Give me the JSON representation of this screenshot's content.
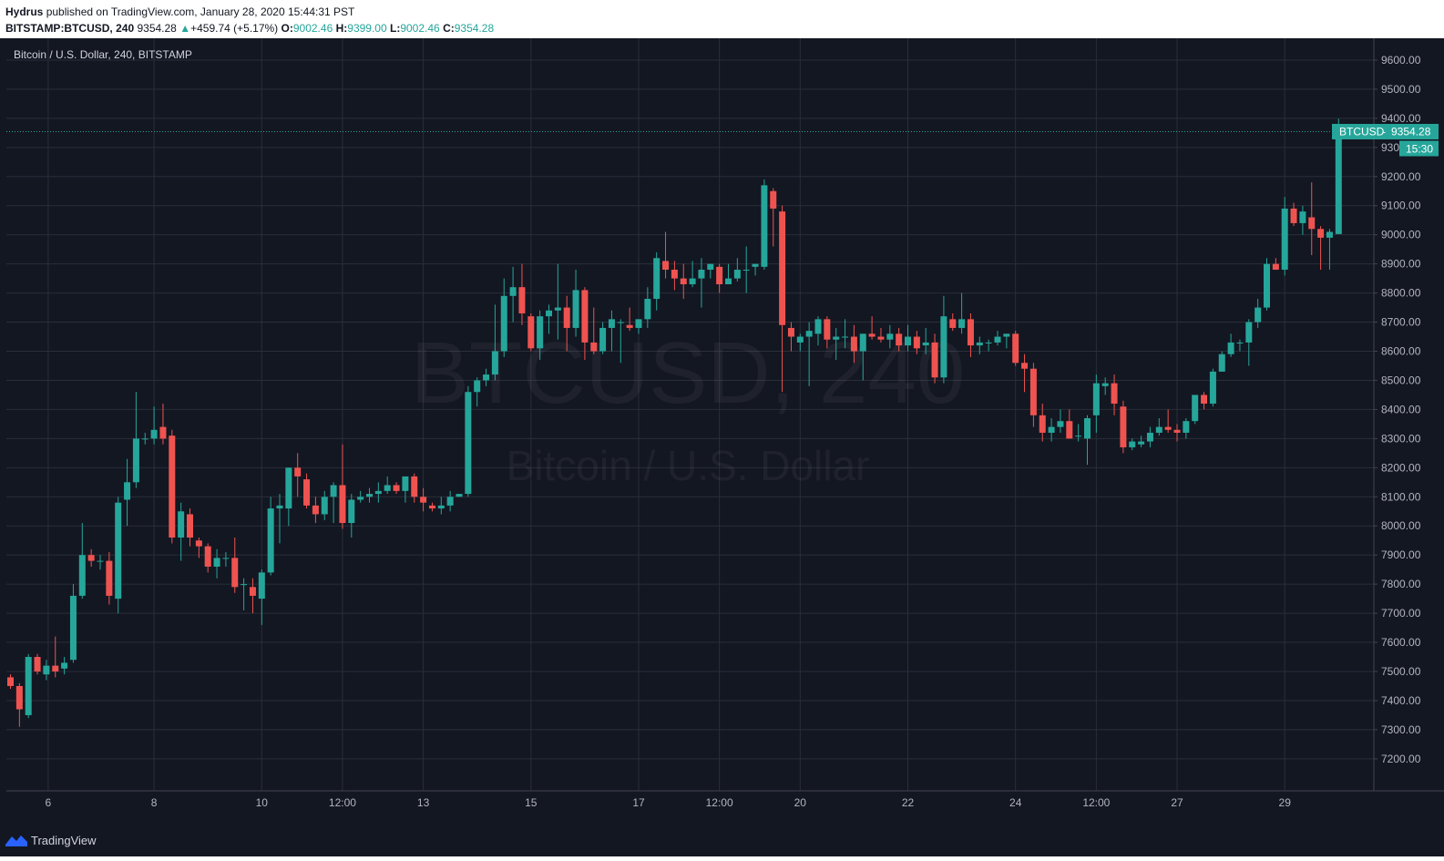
{
  "header": {
    "author": "Hydrus",
    "published_text": "published on TradingView.com, January 28, 2020 15:44:31 PST",
    "symbol": "BITSTAMP:BTCUSD, 240",
    "last": "9354.28",
    "change": "+459.74 (+5.17%)",
    "o_label": "O:",
    "o_value": "9002.46",
    "h_label": "H:",
    "h_value": "9399.00",
    "l_label": "L:",
    "l_value": "9002.46",
    "c_label": "C:",
    "c_value": "9354.28"
  },
  "chart_data": {
    "type": "candlestick",
    "title": "Bitcoin / U.S. Dollar, 240, BITSTAMP",
    "watermark_symbol": "BTCUSD, 240",
    "watermark_name": "Bitcoin / U.S. Dollar",
    "y_range": [
      7090,
      9675
    ],
    "y_ticks": [
      "7200.00",
      "7300.00",
      "7400.00",
      "7500.00",
      "7600.00",
      "7700.00",
      "7800.00",
      "7900.00",
      "8000.00",
      "8100.00",
      "8200.00",
      "8300.00",
      "8400.00",
      "8500.00",
      "8600.00",
      "8700.00",
      "8800.00",
      "8900.00",
      "9000.00",
      "9100.00",
      "9200.00",
      "9300.00",
      "9400.00",
      "9500.00",
      "9600.00"
    ],
    "y_tick_values": [
      7200,
      7300,
      7400,
      7500,
      7600,
      7700,
      7800,
      7900,
      8000,
      8100,
      8200,
      8300,
      8400,
      8500,
      8600,
      8700,
      8800,
      8900,
      9000,
      9100,
      9200,
      9300,
      9400,
      9500,
      9600
    ],
    "x_ticks": [
      "6",
      "8",
      "10",
      "12:00",
      "13",
      "15",
      "17",
      "12:00",
      "20",
      "22",
      "24",
      "12:00",
      "27",
      "29"
    ],
    "x_tick_index": [
      4.2,
      16,
      28,
      37,
      46,
      58,
      70,
      79,
      88,
      100,
      112,
      121,
      130,
      142
    ],
    "price_label": {
      "symbol": "BTCUSD",
      "value": "9354.28",
      "countdown": "15:30"
    },
    "colors": {
      "up": "#26a69a",
      "down": "#ef5350",
      "background": "#131722",
      "grid": "#2a2e39",
      "text": "#b2b5be"
    },
    "candles": [
      [
        7480,
        7490,
        7440,
        7450
      ],
      [
        7450,
        7460,
        7310,
        7370
      ],
      [
        7350,
        7560,
        7340,
        7550
      ],
      [
        7550,
        7560,
        7490,
        7500
      ],
      [
        7490,
        7540,
        7470,
        7520
      ],
      [
        7520,
        7620,
        7480,
        7500
      ],
      [
        7510,
        7550,
        7490,
        7530
      ],
      [
        7540,
        7800,
        7530,
        7760
      ],
      [
        7760,
        8010,
        7750,
        7900
      ],
      [
        7900,
        7920,
        7860,
        7880
      ],
      [
        7880,
        7900,
        7850,
        7880
      ],
      [
        7880,
        7910,
        7730,
        7760
      ],
      [
        7750,
        8100,
        7700,
        8080
      ],
      [
        8090,
        8230,
        8000,
        8150
      ],
      [
        8150,
        8460,
        8130,
        8300
      ],
      [
        8300,
        8320,
        8280,
        8300
      ],
      [
        8300,
        8410,
        8280,
        8330
      ],
      [
        8340,
        8420,
        8280,
        8300
      ],
      [
        8310,
        8330,
        7940,
        7960
      ],
      [
        7960,
        8080,
        7880,
        8050
      ],
      [
        8040,
        8060,
        7930,
        7960
      ],
      [
        7950,
        7960,
        7890,
        7930
      ],
      [
        7930,
        7940,
        7840,
        7860
      ],
      [
        7860,
        7920,
        7820,
        7890
      ],
      [
        7890,
        7910,
        7860,
        7890
      ],
      [
        7890,
        7960,
        7770,
        7790
      ],
      [
        7800,
        7820,
        7710,
        7800
      ],
      [
        7790,
        7820,
        7700,
        7760
      ],
      [
        7750,
        7850,
        7660,
        7840
      ],
      [
        7840,
        8100,
        7830,
        8060
      ],
      [
        8060,
        8110,
        7940,
        8070
      ],
      [
        8060,
        8200,
        8000,
        8200
      ],
      [
        8200,
        8250,
        8100,
        8170
      ],
      [
        8160,
        8180,
        8060,
        8070
      ],
      [
        8070,
        8100,
        8010,
        8040
      ],
      [
        8040,
        8120,
        8020,
        8100
      ],
      [
        8100,
        8150,
        8010,
        8140
      ],
      [
        8140,
        8280,
        7990,
        8010
      ],
      [
        8010,
        8110,
        7960,
        8090
      ],
      [
        8090,
        8120,
        8080,
        8100
      ],
      [
        8100,
        8130,
        8080,
        8110
      ],
      [
        8110,
        8150,
        8080,
        8120
      ],
      [
        8120,
        8170,
        8110,
        8140
      ],
      [
        8140,
        8150,
        8110,
        8120
      ],
      [
        8120,
        8160,
        8080,
        8170
      ],
      [
        8170,
        8180,
        8080,
        8100
      ],
      [
        8100,
        8130,
        8050,
        8080
      ],
      [
        8070,
        8080,
        8050,
        8060
      ],
      [
        8060,
        8100,
        8040,
        8070
      ],
      [
        8070,
        8120,
        8050,
        8100
      ],
      [
        8100,
        8110,
        8100,
        8110
      ],
      [
        8110,
        8480,
        8100,
        8460
      ],
      [
        8460,
        8510,
        8410,
        8500
      ],
      [
        8500,
        8540,
        8480,
        8520
      ],
      [
        8520,
        8760,
        8500,
        8600
      ],
      [
        8600,
        8850,
        8580,
        8790
      ],
      [
        8790,
        8890,
        8700,
        8820
      ],
      [
        8820,
        8900,
        8690,
        8730
      ],
      [
        8720,
        8730,
        8600,
        8610
      ],
      [
        8610,
        8740,
        8570,
        8720
      ],
      [
        8720,
        8760,
        8660,
        8740
      ],
      [
        8740,
        8900,
        8640,
        8750
      ],
      [
        8750,
        8790,
        8600,
        8680
      ],
      [
        8680,
        8880,
        8650,
        8810
      ],
      [
        8810,
        8820,
        8570,
        8630
      ],
      [
        8630,
        8750,
        8590,
        8600
      ],
      [
        8600,
        8700,
        8590,
        8680
      ],
      [
        8680,
        8740,
        8600,
        8710
      ],
      [
        8700,
        8710,
        8560,
        8700
      ],
      [
        8690,
        8750,
        8670,
        8680
      ],
      [
        8680,
        8710,
        8660,
        8710
      ],
      [
        8710,
        8820,
        8680,
        8780
      ],
      [
        8780,
        8940,
        8740,
        8920
      ],
      [
        8910,
        9010,
        8850,
        8880
      ],
      [
        8880,
        8910,
        8810,
        8850
      ],
      [
        8850,
        8900,
        8780,
        8830
      ],
      [
        8830,
        8910,
        8820,
        8850
      ],
      [
        8850,
        8920,
        8750,
        8880
      ],
      [
        8880,
        8900,
        8850,
        8900
      ],
      [
        8890,
        8900,
        8800,
        8830
      ],
      [
        8830,
        8900,
        8830,
        8850
      ],
      [
        8850,
        8920,
        8840,
        8880
      ],
      [
        8880,
        8960,
        8800,
        8880
      ],
      [
        8890,
        8900,
        8860,
        8900
      ],
      [
        8890,
        9190,
        8880,
        9170
      ],
      [
        9150,
        9160,
        8960,
        9090
      ],
      [
        9080,
        9100,
        8460,
        8690
      ],
      [
        8680,
        8700,
        8600,
        8650
      ],
      [
        8630,
        8660,
        8600,
        8650
      ],
      [
        8650,
        8700,
        8480,
        8670
      ],
      [
        8660,
        8720,
        8620,
        8710
      ],
      [
        8710,
        8720,
        8610,
        8640
      ],
      [
        8640,
        8680,
        8570,
        8650
      ],
      [
        8650,
        8710,
        8610,
        8650
      ],
      [
        8650,
        8690,
        8560,
        8600
      ],
      [
        8600,
        8660,
        8500,
        8660
      ],
      [
        8660,
        8720,
        8640,
        8650
      ],
      [
        8650,
        8680,
        8630,
        8640
      ],
      [
        8640,
        8690,
        8610,
        8660
      ],
      [
        8660,
        8680,
        8600,
        8620
      ],
      [
        8620,
        8690,
        8600,
        8650
      ],
      [
        8650,
        8670,
        8590,
        8610
      ],
      [
        8620,
        8680,
        8590,
        8630
      ],
      [
        8630,
        8660,
        8490,
        8510
      ],
      [
        8510,
        8790,
        8490,
        8720
      ],
      [
        8710,
        8730,
        8670,
        8680
      ],
      [
        8680,
        8800,
        8660,
        8710
      ],
      [
        8710,
        8730,
        8580,
        8620
      ],
      [
        8620,
        8650,
        8590,
        8630
      ],
      [
        8630,
        8640,
        8600,
        8630
      ],
      [
        8630,
        8670,
        8620,
        8650
      ],
      [
        8650,
        8660,
        8610,
        8660
      ],
      [
        8660,
        8670,
        8550,
        8560
      ],
      [
        8560,
        8590,
        8460,
        8540
      ],
      [
        8540,
        8560,
        8340,
        8380
      ],
      [
        8380,
        8420,
        8290,
        8320
      ],
      [
        8320,
        8370,
        8290,
        8340
      ],
      [
        8340,
        8400,
        8320,
        8360
      ],
      [
        8360,
        8400,
        8300,
        8300
      ],
      [
        8310,
        8350,
        8290,
        8310
      ],
      [
        8300,
        8380,
        8210,
        8370
      ],
      [
        8380,
        8520,
        8320,
        8490
      ],
      [
        8480,
        8510,
        8450,
        8490
      ],
      [
        8490,
        8520,
        8380,
        8420
      ],
      [
        8410,
        8430,
        8250,
        8270
      ],
      [
        8270,
        8300,
        8260,
        8290
      ],
      [
        8280,
        8310,
        8270,
        8290
      ],
      [
        8290,
        8340,
        8270,
        8320
      ],
      [
        8320,
        8370,
        8310,
        8340
      ],
      [
        8340,
        8400,
        8320,
        8330
      ],
      [
        8330,
        8350,
        8290,
        8320
      ],
      [
        8320,
        8370,
        8300,
        8360
      ],
      [
        8360,
        8440,
        8350,
        8450
      ],
      [
        8450,
        8460,
        8400,
        8420
      ],
      [
        8420,
        8540,
        8410,
        8530
      ],
      [
        8530,
        8600,
        8530,
        8590
      ],
      [
        8590,
        8660,
        8580,
        8630
      ],
      [
        8630,
        8640,
        8600,
        8630
      ],
      [
        8630,
        8710,
        8550,
        8700
      ],
      [
        8700,
        8780,
        8680,
        8750
      ],
      [
        8750,
        8920,
        8740,
        8900
      ],
      [
        8900,
        8920,
        8880,
        8880
      ],
      [
        8880,
        9130,
        8860,
        9090
      ],
      [
        9090,
        9110,
        9030,
        9040
      ],
      [
        9040,
        9100,
        9000,
        9080
      ],
      [
        9060,
        9180,
        8930,
        9020
      ],
      [
        9020,
        9030,
        8880,
        8990
      ],
      [
        8990,
        9020,
        8880,
        9010
      ],
      [
        9002.46,
        9399,
        9002.46,
        9354.28
      ]
    ]
  },
  "footer": {
    "brand": "TradingView"
  }
}
